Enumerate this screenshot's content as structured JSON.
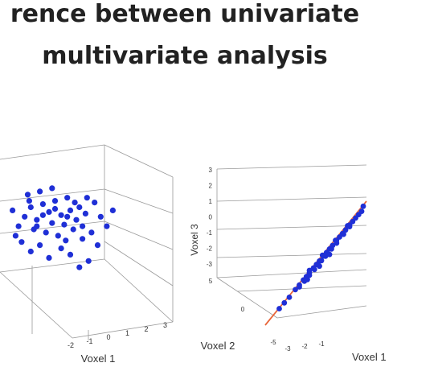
{
  "slide": {
    "title_line_1": "rence between univariate",
    "title_line_2": "multivariate analysis"
  },
  "colors": {
    "points": "#1f2fd6",
    "regression_line": "#e8663a",
    "box": "#9a9a9a",
    "title": "#222222"
  },
  "chart_data": [
    {
      "type": "scatter",
      "title": "",
      "xlabel": "Voxel 1",
      "ylabel": "",
      "x_ticks": [
        "-2",
        "-1",
        "0",
        "1",
        "2",
        "3"
      ],
      "grid": true,
      "points": [
        [
          0.1,
          0.3
        ],
        [
          0.5,
          0.2
        ],
        [
          0.9,
          0.45
        ],
        [
          1.3,
          0.35
        ],
        [
          1.6,
          0.5
        ],
        [
          1.9,
          0.6
        ],
        [
          0.3,
          0.6
        ],
        [
          0.7,
          0.7
        ],
        [
          1.1,
          0.8
        ],
        [
          1.5,
          0.9
        ],
        [
          1.8,
          0.2
        ],
        [
          2.1,
          0.4
        ],
        [
          0.2,
          1.0
        ],
        [
          0.6,
          1.1
        ],
        [
          1.0,
          1.2
        ],
        [
          1.4,
          0.05
        ],
        [
          2.4,
          0.75
        ],
        [
          2.6,
          0.3
        ],
        [
          0.4,
          -0.1
        ],
        [
          0.8,
          -0.2
        ],
        [
          1.2,
          -0.3
        ],
        [
          1.7,
          -0.1
        ],
        [
          2.0,
          -0.4
        ],
        [
          2.3,
          -0.2
        ],
        [
          -0.1,
          0.0
        ],
        [
          0.0,
          -0.5
        ],
        [
          0.3,
          -0.8
        ],
        [
          0.6,
          -0.6
        ],
        [
          0.9,
          -1.0
        ],
        [
          1.3,
          -0.7
        ],
        [
          1.6,
          -0.9
        ],
        [
          1.9,
          -1.3
        ],
        [
          2.2,
          -1.1
        ],
        [
          2.5,
          -0.6
        ],
        [
          2.8,
          0.0
        ],
        [
          3.0,
          0.5
        ],
        [
          -0.3,
          0.5
        ],
        [
          -0.2,
          -0.3
        ],
        [
          0.5,
          0.0
        ],
        [
          1.0,
          0.1
        ],
        [
          1.5,
          0.3
        ],
        [
          2.0,
          0.0
        ],
        [
          0.7,
          0.35
        ],
        [
          1.1,
          0.55
        ],
        [
          1.45,
          -0.45
        ],
        [
          0.25,
          0.8
        ],
        [
          1.75,
          0.75
        ],
        [
          2.15,
          0.9
        ]
      ]
    },
    {
      "type": "scatter",
      "title": "",
      "xlabel": "Voxel 1",
      "ylabel": "Voxel 3",
      "zlabel": "Voxel 2",
      "z_axis_ticks": [
        "3",
        "2",
        "1",
        "0",
        "-1",
        "-2",
        "-3"
      ],
      "depth_ticks": [
        "5",
        "0",
        "-5"
      ],
      "x_ticks": [
        "-3",
        "-2",
        "-1"
      ],
      "grid": true,
      "regression_line": true,
      "points": [
        [
          0.05,
          0.9
        ],
        [
          0.1,
          0.85
        ],
        [
          0.16,
          0.8
        ],
        [
          0.2,
          0.74
        ],
        [
          0.24,
          0.7
        ],
        [
          0.27,
          0.66
        ],
        [
          0.3,
          0.63
        ],
        [
          0.33,
          0.6
        ],
        [
          0.36,
          0.56
        ],
        [
          0.39,
          0.53
        ],
        [
          0.42,
          0.5
        ],
        [
          0.45,
          0.46
        ],
        [
          0.48,
          0.43
        ],
        [
          0.51,
          0.4
        ],
        [
          0.54,
          0.37
        ],
        [
          0.57,
          0.33
        ],
        [
          0.6,
          0.3
        ],
        [
          0.63,
          0.27
        ],
        [
          0.66,
          0.24
        ],
        [
          0.69,
          0.2
        ],
        [
          0.72,
          0.17
        ],
        [
          0.75,
          0.14
        ],
        [
          0.78,
          0.11
        ],
        [
          0.82,
          0.08
        ],
        [
          0.3,
          0.7
        ],
        [
          0.35,
          0.65
        ],
        [
          0.4,
          0.6
        ],
        [
          0.45,
          0.55
        ],
        [
          0.5,
          0.48
        ],
        [
          0.55,
          0.44
        ],
        [
          0.6,
          0.38
        ],
        [
          0.65,
          0.33
        ],
        [
          0.7,
          0.26
        ],
        [
          0.25,
          0.6
        ],
        [
          0.38,
          0.47
        ],
        [
          0.52,
          0.34
        ],
        [
          0.62,
          0.22
        ],
        [
          0.74,
          0.2
        ],
        [
          0.44,
          0.62
        ],
        [
          0.58,
          0.5
        ],
        [
          0.68,
          0.4
        ],
        [
          0.8,
          0.05
        ]
      ]
    }
  ]
}
